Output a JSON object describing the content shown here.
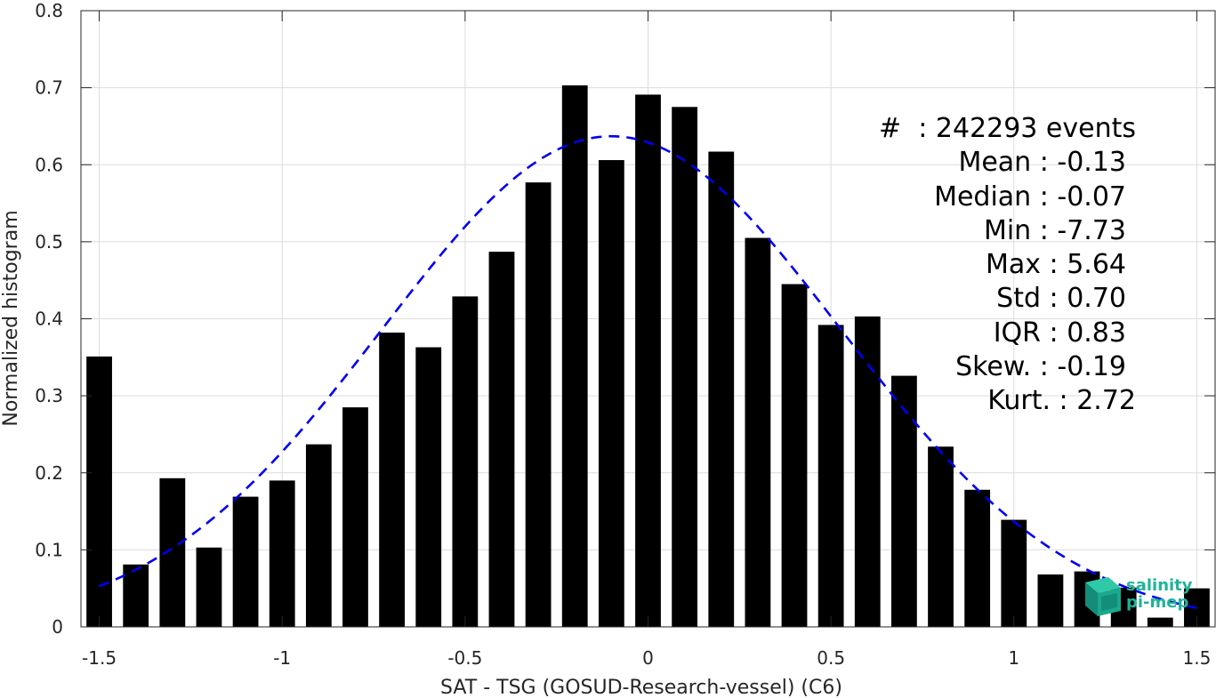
{
  "chart_data": {
    "type": "bar",
    "xlabel": "SAT - TSG (GOSUD-Research-vessel) (C6)",
    "ylabel": "Normalized histogram",
    "xlim": [
      -1.55,
      1.55
    ],
    "ylim": [
      0,
      0.8
    ],
    "xticks": [
      -1.5,
      -1,
      -0.5,
      0,
      0.5,
      1,
      1.5
    ],
    "xtick_labels": [
      "-1.5",
      "-1",
      "-0.5",
      "0",
      "0.5",
      "1",
      "1.5"
    ],
    "yticks": [
      0,
      0.1,
      0.2,
      0.3,
      0.4,
      0.5,
      0.6,
      0.7,
      0.8
    ],
    "ytick_labels": [
      "0",
      "0.1",
      "0.2",
      "0.3",
      "0.4",
      "0.5",
      "0.6",
      "0.7",
      "0.8"
    ],
    "grid": true,
    "bar_color": "#000000",
    "bar_width": 0.07,
    "x": [
      -1.5,
      -1.4,
      -1.3,
      -1.2,
      -1.1,
      -1.0,
      -0.9,
      -0.8,
      -0.7,
      -0.6,
      -0.5,
      -0.4,
      -0.3,
      -0.2,
      -0.1,
      0.0,
      0.1,
      0.2,
      0.3,
      0.4,
      0.5,
      0.6,
      0.7,
      0.8,
      0.9,
      1.0,
      1.1,
      1.2,
      1.3,
      1.4,
      1.5
    ],
    "values": [
      0.351,
      0.081,
      0.193,
      0.103,
      0.169,
      0.19,
      0.237,
      0.285,
      0.382,
      0.363,
      0.429,
      0.487,
      0.577,
      0.703,
      0.606,
      0.691,
      0.675,
      0.617,
      0.505,
      0.445,
      0.392,
      0.403,
      0.326,
      0.234,
      0.178,
      0.139,
      0.068,
      0.072,
      0.051,
      0.012,
      0.05
    ],
    "fit": {
      "style": "dashed",
      "color": "#0000ee",
      "mean": -0.1,
      "std": 0.627,
      "peak": 0.637,
      "x_range": [
        -1.5,
        1.5
      ]
    }
  },
  "stats": {
    "lines": [
      "#  : 242293 events",
      "Mean : -0.13",
      "Median : -0.07",
      "Min : -7.73",
      "Max : 5.64",
      "Std : 0.70",
      "IQR : 0.83",
      "Skew. : -0.19",
      "Kurt. : 2.72"
    ]
  },
  "logo": {
    "line1": "salinity",
    "line2": "pi-mep",
    "color": "#1fb39a"
  }
}
